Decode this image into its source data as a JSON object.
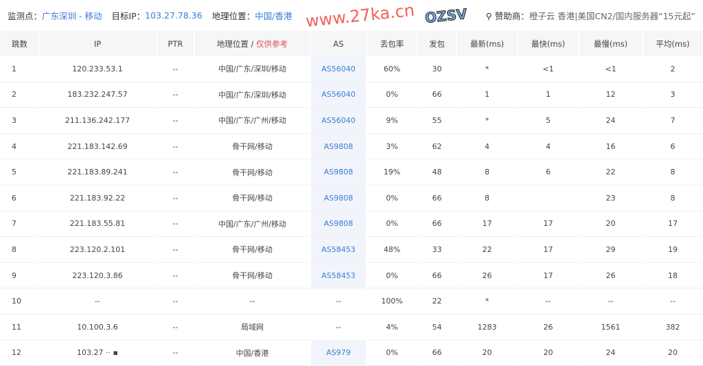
{
  "header": {
    "monitor_label": "监测点：",
    "monitor_value": "广东深圳 - 移动",
    "target_label": "目标IP：",
    "target_value": "103.27.78.36",
    "geo_label": "地理位置：",
    "geo_value": "中国/香港",
    "sponsor_label": "赞助商：",
    "sponsor_value": "橙子云 香港|美国CN2/国内服务器“15元起”"
  },
  "columns": [
    "跳数",
    "IP",
    "PTR",
    "地理位置 / ",
    "AS",
    "丢包率",
    "发包",
    "最新(ms)",
    "最快(ms)",
    "最慢(ms)",
    "平均(ms)"
  ],
  "geo_note": "仅供参考",
  "rows": [
    [
      "1",
      "120.233.53.1",
      "--",
      "中国/广东/深圳/移动",
      "AS56040",
      "60%",
      "30",
      "*",
      "<1",
      "<1",
      "2"
    ],
    [
      "2",
      "183.232.247.57",
      "--",
      "中国/广东/深圳/移动",
      "AS56040",
      "0%",
      "66",
      "1",
      "1",
      "12",
      "3"
    ],
    [
      "3",
      "211.136.242.177",
      "--",
      "中国/广东/广州/移动",
      "AS56040",
      "9%",
      "55",
      "*",
      "5",
      "24",
      "7"
    ],
    [
      "4",
      "221.183.142.69",
      "--",
      "骨干网/移动",
      "AS9808",
      "3%",
      "62",
      "4",
      "4",
      "16",
      "6"
    ],
    [
      "5",
      "221.183.89.241",
      "--",
      "骨干网/移动",
      "AS9808",
      "19%",
      "48",
      "8",
      "6",
      "22",
      "8"
    ],
    [
      "6",
      "221.183.92.22",
      "--",
      "骨干网/移动",
      "AS9808",
      "0%",
      "66",
      "8",
      "",
      "23",
      "8"
    ],
    [
      "7",
      "221.183.55.81",
      "--",
      "中国/广东/广州/移动",
      "AS9808",
      "0%",
      "66",
      "17",
      "17",
      "20",
      "17"
    ],
    [
      "8",
      "223.120.2.101",
      "--",
      "骨干网/移动",
      "AS58453",
      "48%",
      "33",
      "22",
      "17",
      "29",
      "19"
    ],
    [
      "9",
      "223.120.3.86",
      "--",
      "骨干网/移动",
      "AS58453",
      "0%",
      "66",
      "26",
      "17",
      "26",
      "18"
    ],
    [
      "10",
      "--",
      "--",
      "--",
      "--",
      "100%",
      "22",
      "*",
      "--",
      "--",
      "--"
    ],
    [
      "11",
      "10.100.3.6",
      "--",
      "局域网",
      "--",
      "4%",
      "54",
      "1283",
      "26",
      "1561",
      "382"
    ],
    [
      "12",
      "103.27 ·· ▪",
      "--",
      "中国/香港",
      "AS979",
      "0%",
      "66",
      "20",
      "20",
      "24",
      "20"
    ]
  ],
  "watermark": "www.27ka.cn",
  "logo": "OZSV"
}
